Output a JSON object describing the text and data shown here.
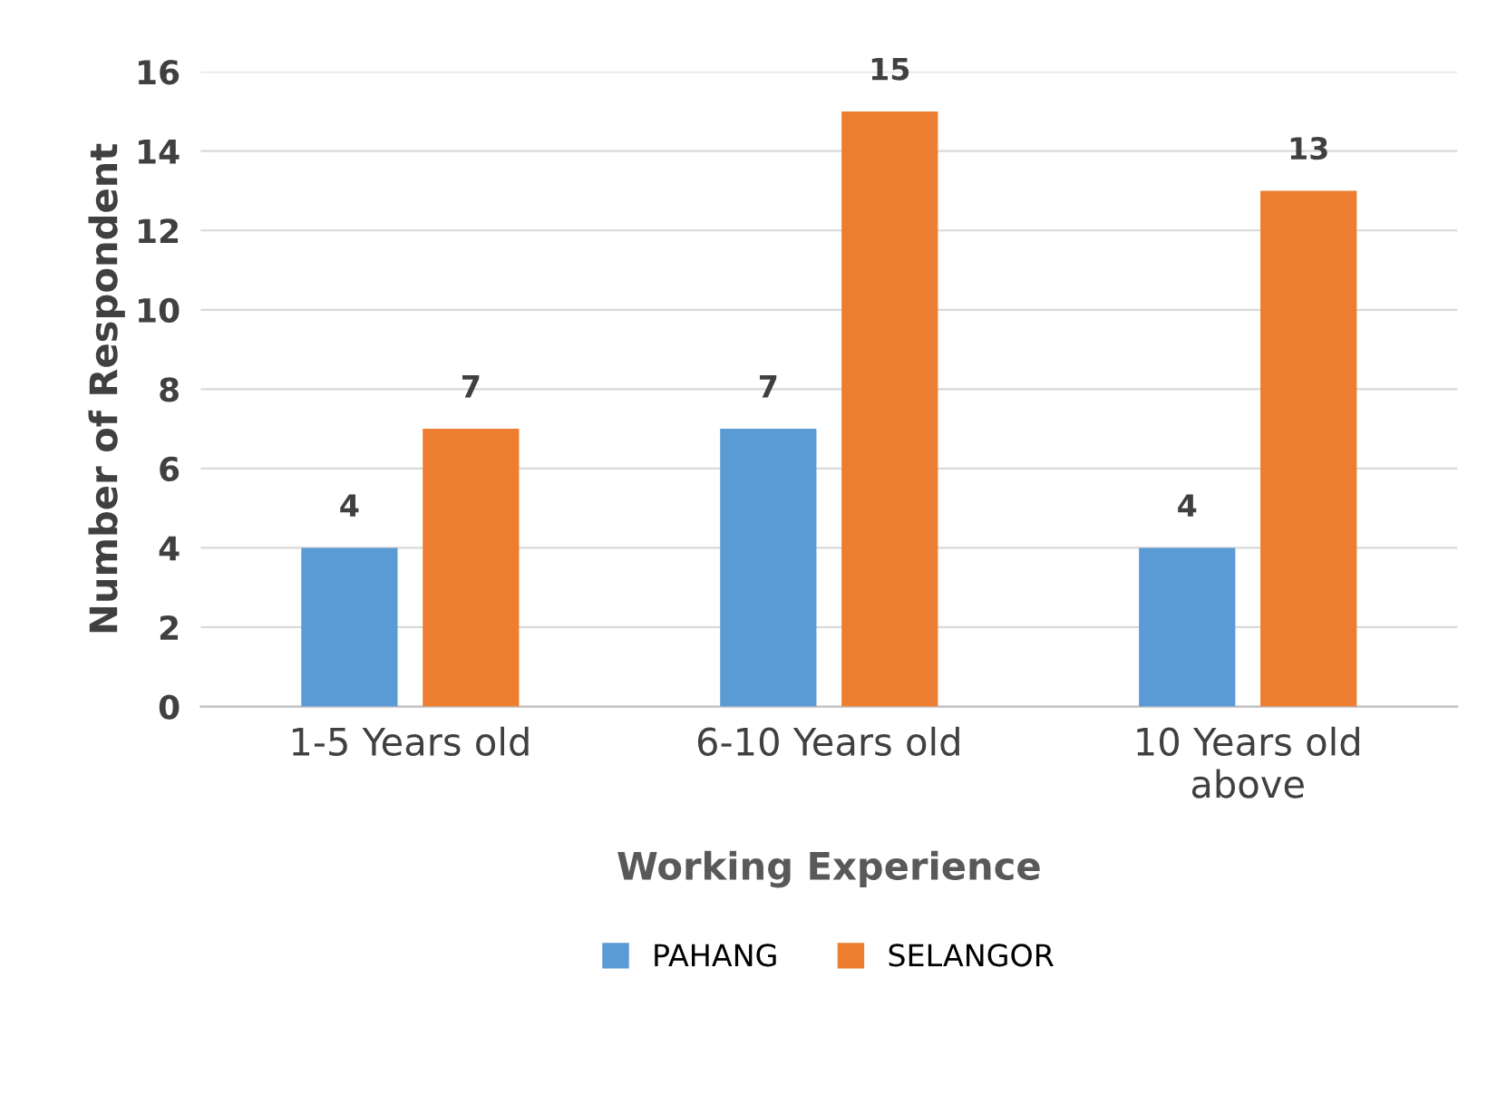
{
  "chart_data": {
    "type": "bar",
    "xlabel": "Working Experience",
    "ylabel": "Number of Respondent",
    "categories": [
      "1-5 Years old",
      "6-10 Years old",
      "10 Years old\nabove"
    ],
    "series": [
      {
        "name": "PAHANG",
        "color": "#5b9bd5",
        "values": [
          4,
          7,
          4
        ]
      },
      {
        "name": "SELANGOR",
        "color": "#ed7d31",
        "values": [
          7,
          15,
          13
        ]
      }
    ],
    "ylim": [
      0,
      16
    ],
    "yticks": [
      0,
      2,
      4,
      6,
      8,
      10,
      12,
      14,
      16
    ],
    "grid": "y",
    "legend": "bottom",
    "data_labels": true
  }
}
